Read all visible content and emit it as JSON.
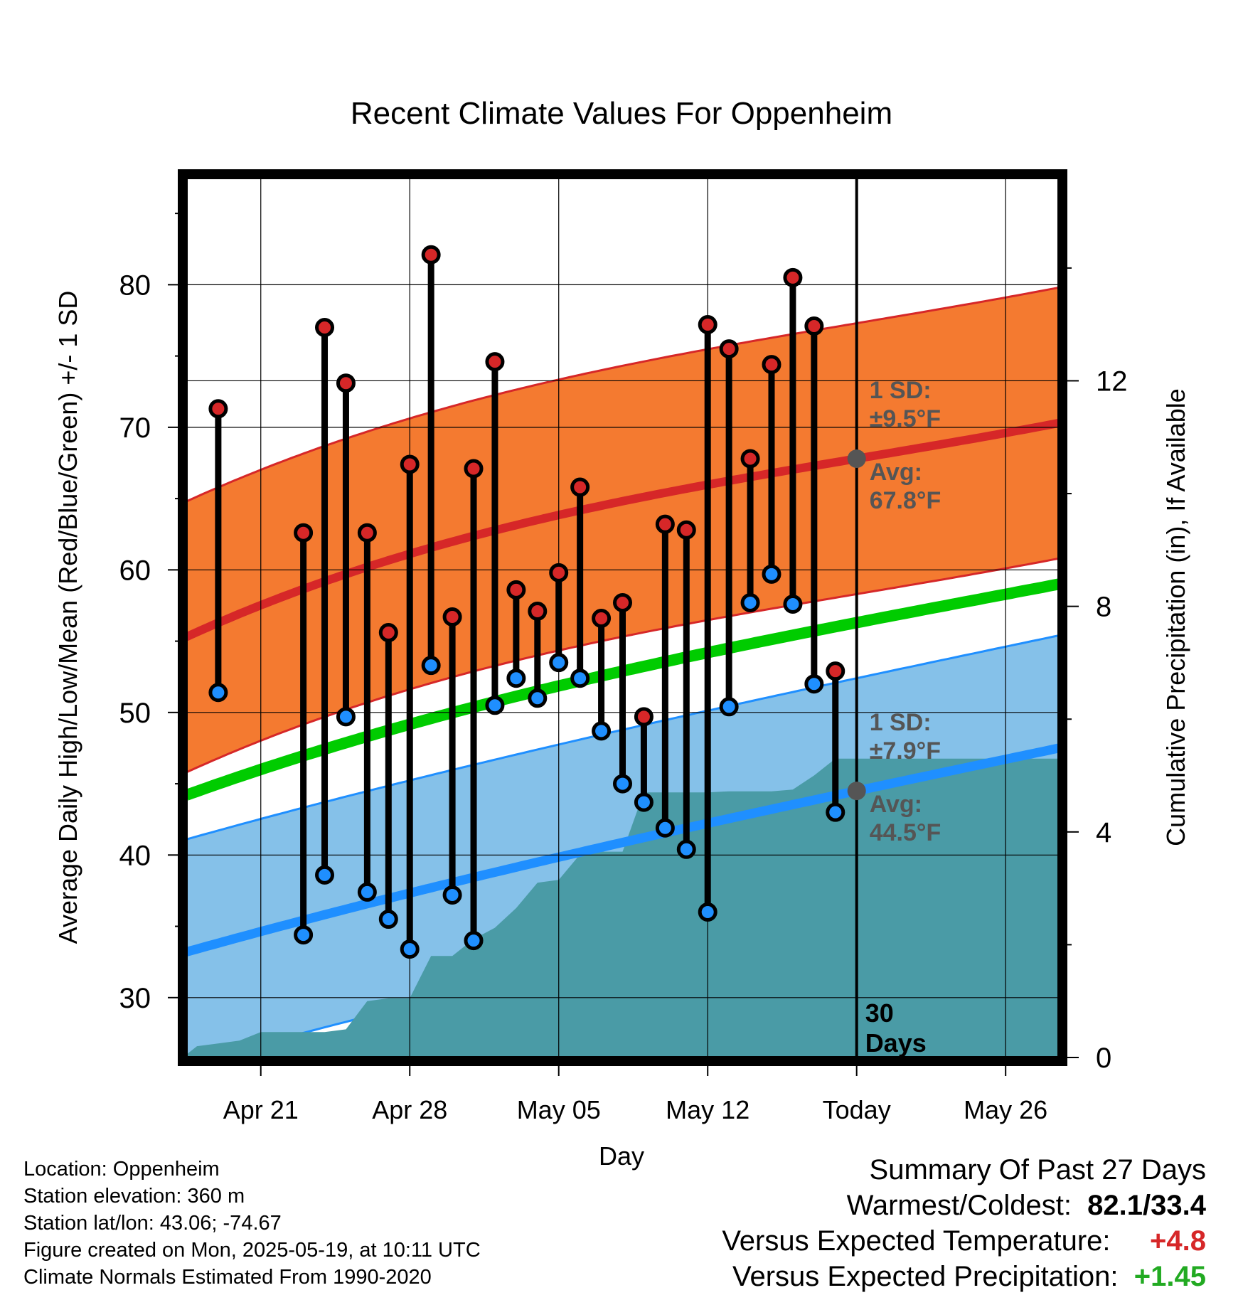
{
  "chart_data": {
    "type": "line",
    "title": "Recent Climate Values For Oppenheim",
    "xlabel": "Day",
    "ylabel": "Average Daily High/Low/Mean (Red/Blue/Green) +/- 1 SD",
    "y2label": "Cumulative Precipitation (in), If Available",
    "ylim": [
      25.8,
      87.5
    ],
    "y2lim": [
      0,
      15.6
    ],
    "xlim_days": [
      -31.5,
      9.5
    ],
    "x_ticks": [
      {
        "day": -28,
        "label": "Apr 21"
      },
      {
        "day": -21,
        "label": "Apr 28"
      },
      {
        "day": -14,
        "label": "May 05"
      },
      {
        "day": -7,
        "label": "May 12"
      },
      {
        "day": 0,
        "label": "Today"
      },
      {
        "day": 7,
        "label": "May 26"
      }
    ],
    "y_ticks": [
      30,
      40,
      50,
      60,
      70,
      80
    ],
    "y2_ticks": [
      0,
      4,
      8,
      12
    ],
    "today_marker_label": "30 Days",
    "grid": true,
    "colors": {
      "high": "#d62728",
      "high_band": "#f47a30",
      "low": "#1f8fff",
      "low_band": "#85c1e9",
      "mean": "#00cc00",
      "precip": "#4a9ba6",
      "annotation": "#555555",
      "positive_temp": "#d62728",
      "positive_precip": "#00aa00"
    },
    "normal_high": {
      "x": [
        -31.5,
        -15,
        0,
        9.5
      ],
      "mean": [
        55.3,
        63.5,
        67.8,
        70.3
      ],
      "sd": 9.5
    },
    "normal_low": {
      "x": [
        -31.5,
        -15,
        0,
        9.5
      ],
      "mean": [
        33.2,
        39.5,
        44.5,
        47.5
      ],
      "sd": 7.9
    },
    "normal_mean": {
      "x": [
        -31.5,
        -15,
        0,
        9.5
      ],
      "values": [
        44.2,
        51.5,
        56.3,
        59.0
      ]
    },
    "annotations": {
      "high_sd": "1 SD:",
      "high_sd_value": "±9.5°F",
      "high_avg": "Avg:",
      "high_avg_value": "67.8°F",
      "low_sd": "1 SD:",
      "low_sd_value": "±7.9°F",
      "low_avg": "Avg:",
      "low_avg_value": "44.5°F"
    },
    "series": [
      {
        "name": "High",
        "x": [
          -30,
          -26,
          -25,
          -24,
          -23,
          -22,
          -21,
          -20,
          -19,
          -18,
          -17,
          -16,
          -15,
          -14,
          -13,
          -12,
          -11,
          -10,
          -9,
          -8,
          -7,
          -6,
          -5,
          -4,
          -3,
          -2,
          -1
        ],
        "values": [
          71.3,
          62.6,
          77.0,
          73.1,
          62.6,
          55.6,
          67.4,
          82.1,
          56.7,
          67.1,
          74.6,
          58.6,
          57.1,
          59.8,
          65.8,
          56.6,
          57.7,
          49.7,
          63.2,
          62.8,
          77.2,
          75.5,
          67.8,
          74.4,
          80.5,
          77.1,
          52.9
        ]
      },
      {
        "name": "Low",
        "x": [
          -30,
          -26,
          -25,
          -24,
          -23,
          -22,
          -21,
          -20,
          -19,
          -18,
          -17,
          -16,
          -15,
          -14,
          -13,
          -12,
          -11,
          -10,
          -9,
          -8,
          -7,
          -6,
          -5,
          -4,
          -3,
          -2,
          -1
        ],
        "values": [
          51.4,
          34.4,
          38.6,
          49.7,
          37.4,
          35.5,
          33.4,
          53.3,
          37.2,
          34.0,
          50.5,
          52.4,
          51.0,
          53.5,
          52.4,
          48.7,
          45.0,
          43.7,
          41.9,
          40.4,
          36.0,
          50.4,
          57.7,
          59.7,
          57.6,
          52.0,
          43.0
        ]
      },
      {
        "name": "Cumulative Precipitation",
        "x": [
          -31.5,
          -31,
          -30,
          -29,
          -28,
          -27,
          -26,
          -25,
          -24,
          -23,
          -22,
          -21,
          -20,
          -19,
          -18,
          -17,
          -16,
          -15,
          -14,
          -13,
          -12,
          -11,
          -10,
          -9,
          -8,
          -7,
          -6,
          -5,
          -4,
          -3,
          -2,
          -1,
          0,
          9.5
        ],
        "values": [
          0.05,
          0.2,
          0.25,
          0.3,
          0.45,
          0.45,
          0.45,
          0.45,
          0.5,
          1.0,
          1.05,
          1.05,
          1.8,
          1.8,
          2.1,
          2.3,
          2.65,
          3.1,
          3.15,
          3.6,
          3.65,
          3.65,
          4.7,
          4.7,
          4.7,
          4.7,
          4.72,
          4.72,
          4.72,
          4.75,
          5.0,
          5.3,
          5.3,
          5.3
        ]
      }
    ]
  },
  "station": {
    "location": "Location: Oppenheim",
    "elevation": "Station elevation: 360 m",
    "latlon": "Station lat/lon: 43.06; -74.67",
    "created": "Figure created on Mon, 2025-05-19, at 10:11 UTC",
    "normals": "Climate Normals Estimated From 1990-2020"
  },
  "summary": {
    "title": "Summary Of Past 27 Days",
    "warmest_coldest_label": "Warmest/Coldest:",
    "warmest_coldest_value": "82.1/33.4",
    "temp_label": "Versus Expected Temperature:",
    "temp_value": "+4.8",
    "precip_label": "Versus Expected Precipitation:",
    "precip_value": "+1.45"
  }
}
